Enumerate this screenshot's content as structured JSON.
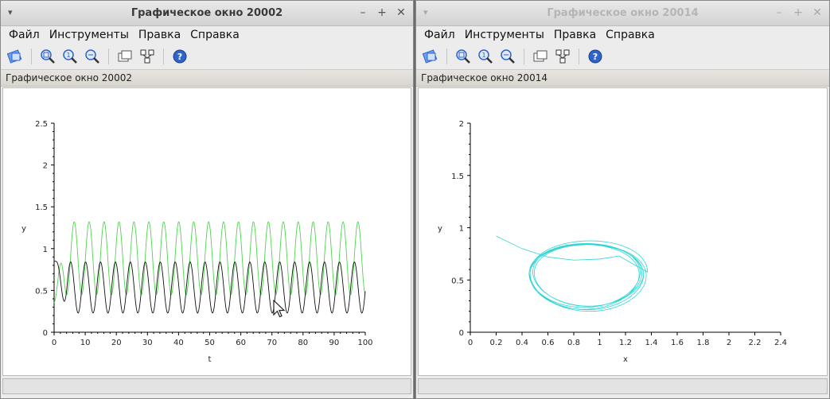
{
  "menu": {
    "file": "Файл",
    "tools": "Инструменты",
    "edit": "Правка",
    "help": "Справка"
  },
  "window_controls": {
    "menu": "▾",
    "minimize": "–",
    "maximize": "+",
    "close": "✕"
  },
  "left_window": {
    "title": "Графическое окно 20002",
    "path_title": "Графическое окно 20002"
  },
  "right_window": {
    "title": "Графическое окно 20014",
    "path_title": "Графическое окно 20014"
  },
  "colors": {
    "green_series": "#4fd34f",
    "black_series": "#111111",
    "cyan_series": "#2fd5d5",
    "toolbar_icon_blue": "#2f64c8"
  },
  "icons": [
    "rotate-icon",
    "zoom-in-icon",
    "zoom-reset-icon",
    "zoom-area-icon",
    "windows-icon",
    "datatip-icon",
    "help-icon"
  ],
  "chart_data": [
    {
      "type": "line",
      "xlabel": "t",
      "ylabel": "y",
      "xlim": [
        0,
        100
      ],
      "ylim": [
        0,
        2.5
      ],
      "x_ticks": [
        "0",
        "10",
        "20",
        "30",
        "40",
        "50",
        "60",
        "70",
        "80",
        "90",
        "100"
      ],
      "y_ticks": [
        "0",
        "0.5",
        "1",
        "1.5",
        "2",
        "2.5"
      ],
      "series": [
        {
          "color": "#4fd34f",
          "description": "oscillation",
          "period": 4.8,
          "min": 0.45,
          "max": 1.32,
          "start": 0.35
        },
        {
          "color": "#111111",
          "description": "oscillation",
          "period": 4.8,
          "min": 0.23,
          "max": 0.84,
          "start": 0.85
        }
      ]
    },
    {
      "type": "line",
      "xlabel": "x",
      "ylabel": "y",
      "xlim": [
        0,
        2.4
      ],
      "ylim": [
        0,
        2
      ],
      "x_ticks": [
        "0",
        "0.2",
        "0.4",
        "0.6",
        "0.8",
        "1",
        "1.2",
        "1.4",
        "1.6",
        "1.8",
        "2",
        "2.2",
        "2.4"
      ],
      "y_ticks": [
        "0",
        "0.5",
        "1",
        "1.5",
        "2"
      ],
      "series": [
        {
          "color": "#2fd5d5",
          "description": "phase trajectory spiraling into limit cycle",
          "start": [
            0.2,
            0.92
          ],
          "cycle_center": [
            0.9,
            0.56
          ],
          "cycle_radius_x": 0.42,
          "cycle_radius_y": 0.3
        }
      ]
    }
  ]
}
